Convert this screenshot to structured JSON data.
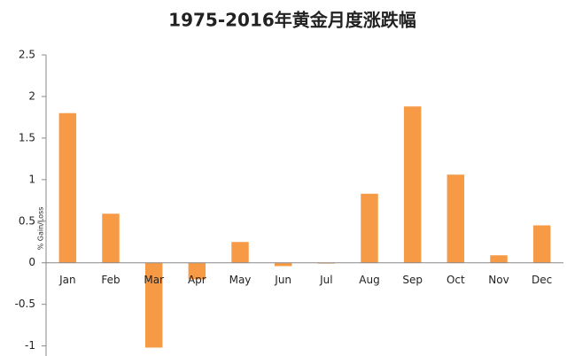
{
  "chart_data": {
    "type": "bar",
    "title": "1975-2016年黄金月度涨跌幅",
    "y_label": "% Gain/Loss",
    "categories": [
      "Jan",
      "Feb",
      "Mar",
      "Apr",
      "May",
      "Jun",
      "Jul",
      "Aug",
      "Sep",
      "Oct",
      "Nov",
      "Dec"
    ],
    "values": [
      1.8,
      0.59,
      -1.02,
      -0.2,
      0.25,
      -0.04,
      -0.01,
      0.83,
      1.88,
      1.06,
      0.09,
      0.45
    ],
    "color": "#f79a46",
    "ylim": [
      -1.1,
      2.5
    ],
    "yticks": [
      -1,
      -0.5,
      0,
      0.5,
      1,
      1.5,
      2,
      2.5
    ],
    "grid": false
  }
}
